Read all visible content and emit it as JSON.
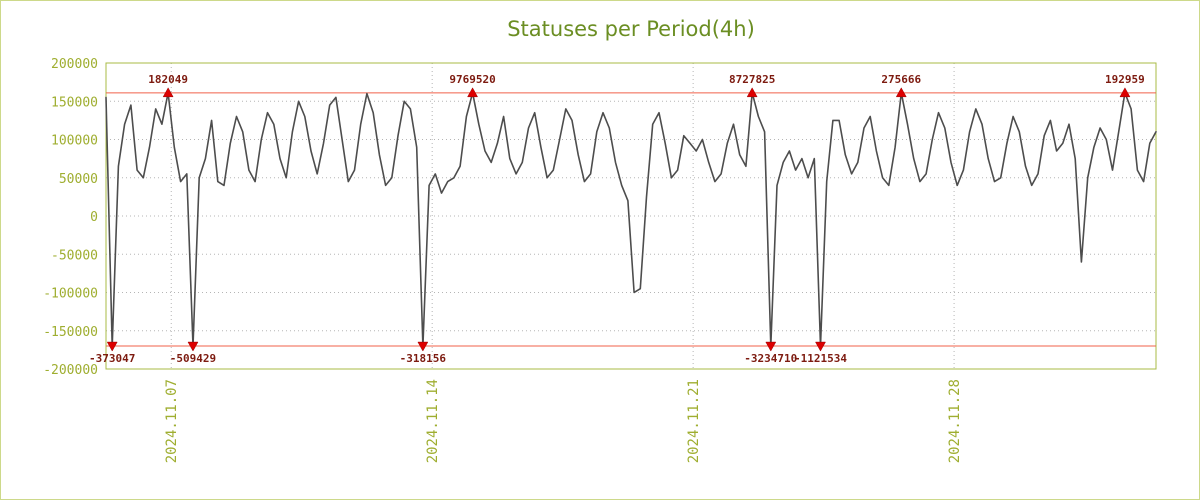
{
  "title": "Statuses per Period(4h)",
  "chart_data": {
    "type": "line",
    "title": "Statuses per Period(4h)",
    "period_label": "4h",
    "ylim": [
      -200000,
      200000
    ],
    "y_ticks": [
      200000,
      150000,
      100000,
      50000,
      0,
      -50000,
      -100000,
      -150000,
      -200000
    ],
    "x_tick_labels": [
      {
        "index": 10.5,
        "label": "2024.11.07"
      },
      {
        "index": 52.5,
        "label": "2024.11.14"
      },
      {
        "index": 94.5,
        "label": "2024.11.21"
      },
      {
        "index": 136.5,
        "label": "2024.11.28"
      }
    ],
    "upper_limit": 161000,
    "lower_limit": -170000,
    "grid": true,
    "legend": "none",
    "series": [
      {
        "name": "statuses",
        "color": "#4d4d4d",
        "values": [
          155000,
          -373047,
          65000,
          120000,
          145000,
          60000,
          50000,
          90000,
          140000,
          120000,
          182049,
          90000,
          45000,
          55000,
          -509429,
          50000,
          75000,
          125000,
          45000,
          40000,
          95000,
          130000,
          110000,
          60000,
          45000,
          100000,
          135000,
          120000,
          75000,
          50000,
          110000,
          150000,
          130000,
          85000,
          55000,
          95000,
          145000,
          155000,
          100000,
          45000,
          60000,
          120000,
          160000,
          135000,
          80000,
          40000,
          50000,
          105000,
          150000,
          140000,
          90000,
          -318156,
          40000,
          55000,
          30000,
          45000,
          50000,
          65000,
          130000,
          9769520,
          120000,
          85000,
          70000,
          95000,
          130000,
          75000,
          55000,
          70000,
          115000,
          135000,
          90000,
          50000,
          60000,
          100000,
          140000,
          125000,
          80000,
          45000,
          55000,
          110000,
          135000,
          115000,
          70000,
          40000,
          20000,
          -100000,
          -95000,
          25000,
          120000,
          135000,
          95000,
          50000,
          60000,
          105000,
          95000,
          85000,
          100000,
          70000,
          45000,
          55000,
          95000,
          120000,
          80000,
          65000,
          8727825,
          130000,
          110000,
          -3234710,
          40000,
          70000,
          85000,
          60000,
          75000,
          50000,
          75000,
          -1121534,
          45000,
          125000,
          125000,
          80000,
          55000,
          70000,
          115000,
          130000,
          85000,
          50000,
          40000,
          90000,
          275666,
          120000,
          75000,
          45000,
          55000,
          100000,
          135000,
          115000,
          70000,
          40000,
          60000,
          110000,
          140000,
          120000,
          75000,
          45000,
          50000,
          95000,
          130000,
          110000,
          65000,
          40000,
          55000,
          105000,
          125000,
          85000,
          95000,
          120000,
          75000,
          -60000,
          50000,
          90000,
          115000,
          100000,
          60000,
          110000,
          192959,
          140000,
          60000,
          45000,
          95000,
          110000
        ]
      }
    ],
    "max_markers": [
      {
        "index": 10,
        "label": "182049"
      },
      {
        "index": 59,
        "label": "9769520"
      },
      {
        "index": 104,
        "label": "8727825"
      },
      {
        "index": 128,
        "label": "275666"
      },
      {
        "index": 164,
        "label": "192959"
      }
    ],
    "min_markers": [
      {
        "index": 1,
        "label": "-373047"
      },
      {
        "index": 14,
        "label": "-509429"
      },
      {
        "index": 51,
        "label": "-318156"
      },
      {
        "index": 107,
        "label": "-3234710"
      },
      {
        "index": 115,
        "label": "-1121534"
      }
    ],
    "colors": {
      "title": "#6b8e23",
      "axis_label": "#9fae30",
      "grid": "#b5b5b5",
      "border": "#a8bb44",
      "series": "#4d4d4d",
      "limit": "#f0604a",
      "marker_fill": "#dd0000",
      "marker_label": "#7d1b10",
      "background": "#ffffff"
    }
  }
}
